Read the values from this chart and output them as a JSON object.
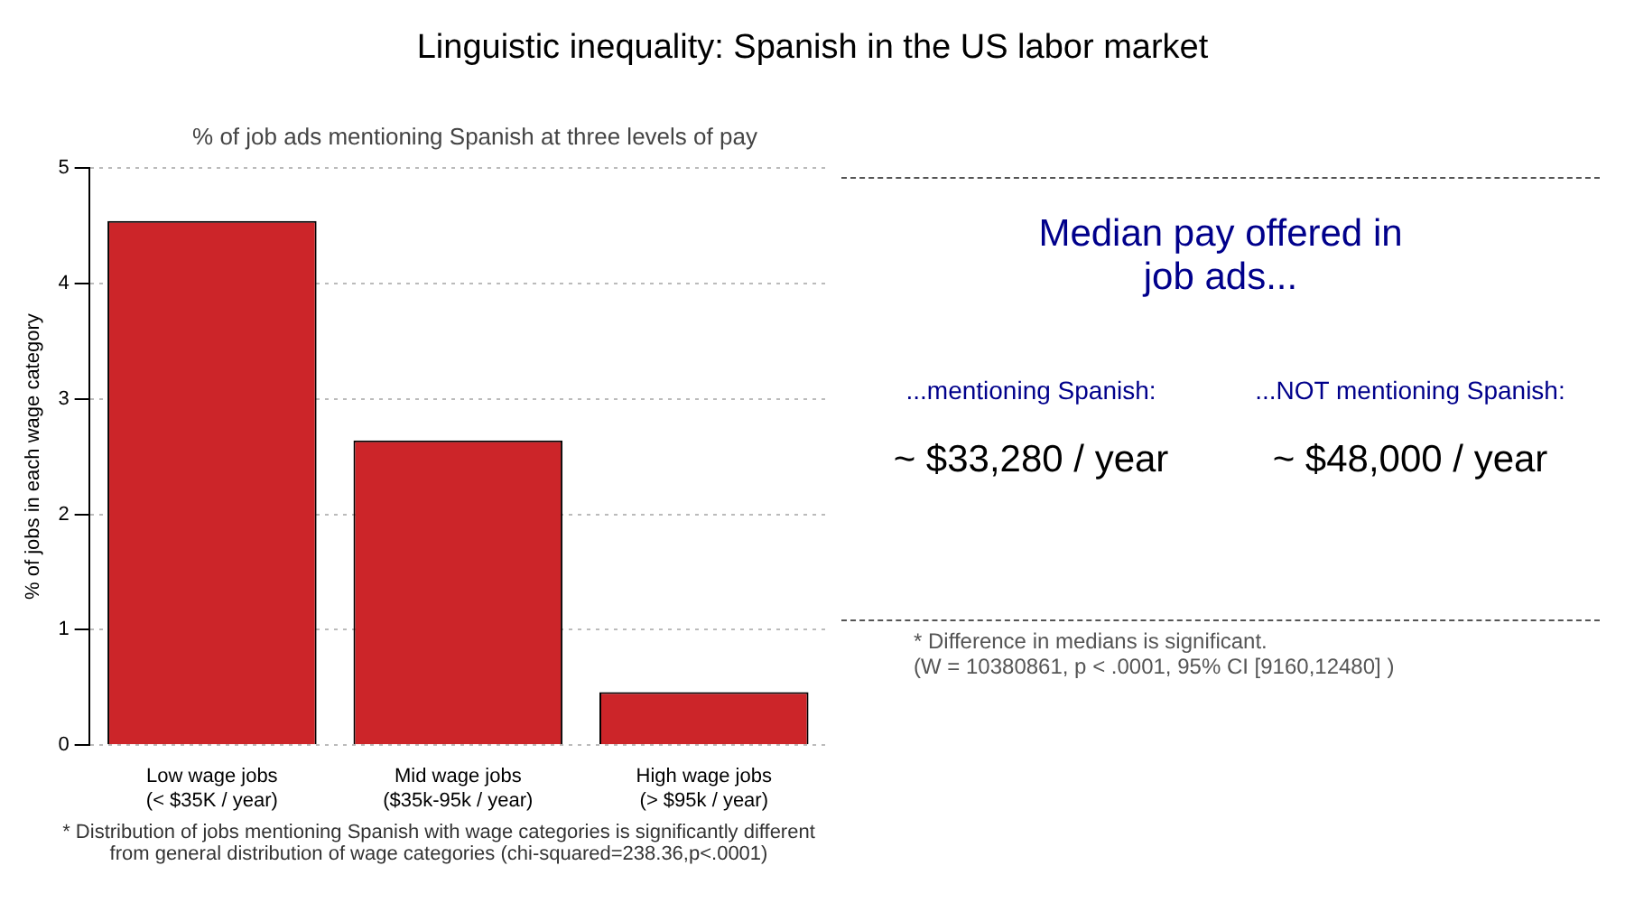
{
  "chart_data": [
    {
      "type": "bar",
      "title": "Linguistic inequality: Spanish in the US labor market",
      "subtitle": "% of job ads mentioning Spanish at three levels of pay",
      "ylabel": "% of jobs in each wage category",
      "categories": [
        "Low wage jobs\n(< $35K / year)",
        "Mid wage jobs\n($35k-95k / year)",
        "High wage jobs\n(> $95k / year)"
      ],
      "values": [
        4.54,
        2.64,
        0.46
      ],
      "color": "#cc2529",
      "ylim": [
        0,
        5
      ],
      "yticks": [
        0,
        1,
        2,
        3,
        4,
        5
      ],
      "grid": "y",
      "annotations": [
        "* Distribution of jobs mentioning Spanish with wage categories is significantly different\nfrom general distribution of wage categories (chi-squared=238.36,p<.0001)"
      ]
    },
    {
      "type": "other",
      "annotations": [
        "Median pay offered in\njob ads...",
        "...mentioning Spanish:",
        "...NOT mentioning Spanish:",
        "~ $33,280 / year",
        "~ $48,000 / year",
        "* Difference in medians is significant.\n(W = 10380861, p < .0001, 95% CI [9160,12480] )"
      ]
    }
  ]
}
